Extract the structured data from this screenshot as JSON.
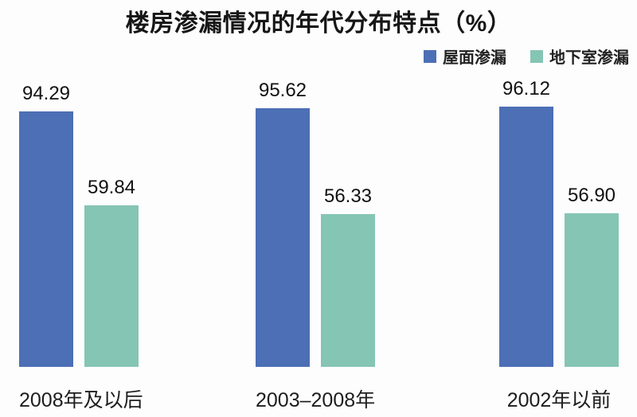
{
  "chart_data": {
    "type": "bar",
    "title": "楼房渗漏情况的年代分布特点（%）",
    "categories": [
      "2008年及以后",
      "2003–2008年",
      "2002年以前"
    ],
    "series": [
      {
        "name": "屋面渗漏",
        "color": "#4C6FB5",
        "values": [
          94.29,
          95.62,
          96.12
        ]
      },
      {
        "name": "地下室渗漏",
        "color": "#85C5B4",
        "values": [
          59.84,
          56.33,
          56.9
        ]
      }
    ],
    "value_labels_shown": true,
    "value_label_format": "2dp",
    "ylim": [
      0,
      100
    ],
    "grid": false,
    "axis_lines": false,
    "legend_position": "top-right",
    "xlabel": "",
    "ylabel": ""
  }
}
